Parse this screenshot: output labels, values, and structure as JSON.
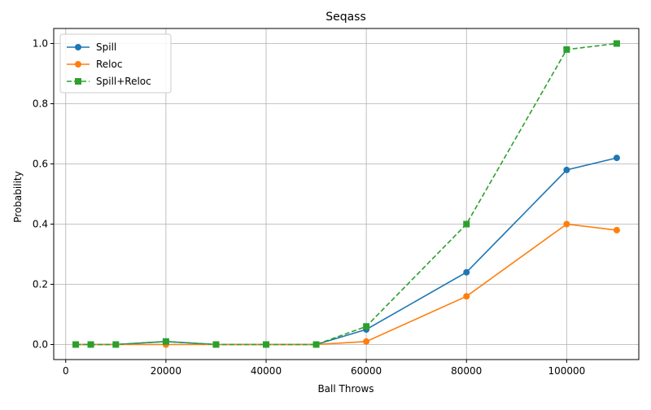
{
  "chart_data": {
    "type": "line",
    "title": "Seqass",
    "xlabel": "Ball Throws",
    "ylabel": "Probability",
    "xlim": [
      -2400,
      114400
    ],
    "ylim": [
      -0.05,
      1.05
    ],
    "xticks": [
      0,
      20000,
      40000,
      60000,
      80000,
      100000
    ],
    "xtick_labels": [
      "0",
      "20000",
      "40000",
      "60000",
      "80000",
      "100000"
    ],
    "yticks": [
      0.0,
      0.2,
      0.4,
      0.6,
      0.8,
      1.0
    ],
    "ytick_labels": [
      "0.0",
      "0.2",
      "0.4",
      "0.6",
      "0.8",
      "1.0"
    ],
    "grid": true,
    "legend_position": "top-left",
    "x": [
      2000,
      5000,
      10000,
      20000,
      30000,
      40000,
      50000,
      60000,
      80000,
      100000,
      110000
    ],
    "series": [
      {
        "name": "Spill",
        "color": "#1f77b4",
        "marker": "circle",
        "linestyle": "solid",
        "values": [
          0.0,
          0.0,
          0.0,
          0.01,
          0.0,
          0.0,
          0.0,
          0.05,
          0.24,
          0.58,
          0.62
        ]
      },
      {
        "name": "Reloc",
        "color": "#ff7f0e",
        "marker": "circle",
        "linestyle": "solid",
        "values": [
          0.0,
          0.0,
          0.0,
          0.0,
          0.0,
          0.0,
          0.0,
          0.01,
          0.16,
          0.4,
          0.38
        ]
      },
      {
        "name": "Spill+Reloc",
        "color": "#2ca02c",
        "marker": "square",
        "linestyle": "dashed",
        "values": [
          0.0,
          0.0,
          0.0,
          0.01,
          0.0,
          0.0,
          0.0,
          0.06,
          0.4,
          0.98,
          1.0
        ]
      }
    ]
  }
}
